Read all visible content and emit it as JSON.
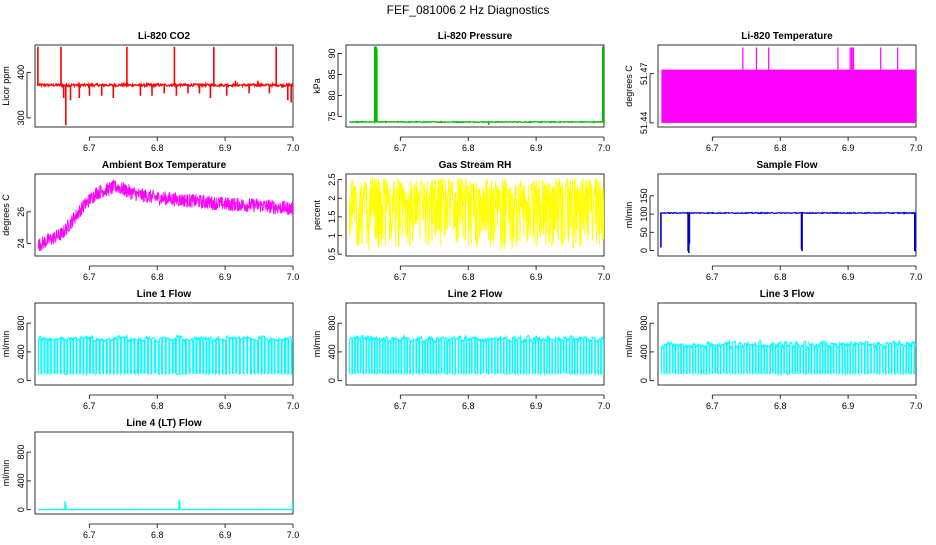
{
  "page": {
    "title": "FEF_081006  2 Hz Diagnostics"
  },
  "chart_data": [
    {
      "type": "line",
      "title": "Li-820 CO2",
      "xlabel": "",
      "ylabel": "Licor ppm",
      "xlim": [
        6.62,
        7.0
      ],
      "ylim": [
        280,
        460
      ],
      "x_ticks": [
        "6.7",
        "6.8",
        "6.9",
        "7.0"
      ],
      "y_ticks": [
        {
          "v": 300,
          "label": "300"
        },
        {
          "v": 400,
          "label": "400"
        }
      ],
      "series": [
        {
          "color": "#ff0000",
          "style": "step",
          "baseline": 372,
          "noise": 3,
          "spikes": [
            [
              6.624,
              455
            ],
            [
              6.658,
              455
            ],
            [
              6.662,
              345
            ],
            [
              6.665,
              285
            ],
            [
              6.672,
              340
            ],
            [
              6.685,
              345
            ],
            [
              6.7,
              350
            ],
            [
              6.718,
              350
            ],
            [
              6.735,
              345
            ],
            [
              6.755,
              455
            ],
            [
              6.775,
              350
            ],
            [
              6.792,
              350
            ],
            [
              6.81,
              355
            ],
            [
              6.825,
              455
            ],
            [
              6.828,
              350
            ],
            [
              6.845,
              355
            ],
            [
              6.862,
              355
            ],
            [
              6.878,
              345
            ],
            [
              6.883,
              455
            ],
            [
              6.902,
              350
            ],
            [
              6.915,
              380
            ],
            [
              6.935,
              355
            ],
            [
              6.948,
              380
            ],
            [
              6.965,
              355
            ],
            [
              6.975,
              455
            ],
            [
              6.992,
              340
            ],
            [
              6.997,
              335
            ]
          ]
        }
      ]
    },
    {
      "type": "line",
      "title": "Li-820 Pressure",
      "xlabel": "",
      "ylabel": "kPa",
      "xlim": [
        6.62,
        7.0
      ],
      "ylim": [
        72.5,
        92
      ],
      "x_ticks": [
        "6.7",
        "6.8",
        "6.9",
        "7.0"
      ],
      "y_ticks": [
        {
          "v": 75,
          "label": "75"
        },
        {
          "v": 80,
          "label": "80"
        },
        {
          "v": 85,
          "label": "85"
        },
        {
          "v": 90,
          "label": "90"
        }
      ],
      "series": [
        {
          "color": "#00bb00",
          "style": "step",
          "baseline": 73.7,
          "noise": 0.12,
          "spikes": [
            [
              6.662,
              91.5
            ],
            [
              6.664,
              91.5
            ],
            [
              6.665,
              91
            ],
            [
              6.83,
              73.2
            ],
            [
              6.998,
              91.5
            ],
            [
              7.0,
              91.5
            ]
          ]
        }
      ]
    },
    {
      "type": "line",
      "title": "Li-820 Temperature",
      "xlabel": "",
      "ylabel": "degrees C",
      "xlim": [
        6.62,
        7.0
      ],
      "ylim": [
        51.4375,
        51.4875
      ],
      "x_ticks": [
        "6.7",
        "6.8",
        "6.9",
        "7.0"
      ],
      "y_ticks": [
        {
          "v": 51.44,
          "label": "51.44"
        },
        {
          "v": 51.47,
          "label": "51.47"
        }
      ],
      "series": [
        {
          "color": "#ff00ff",
          "style": "band",
          "band": [
            51.44,
            51.4725
          ],
          "spikes": [
            [
              6.745,
              51.486
            ],
            [
              6.765,
              51.486
            ],
            [
              6.783,
              51.486
            ],
            [
              6.885,
              51.486
            ],
            [
              6.903,
              51.486
            ],
            [
              6.905,
              51.486
            ],
            [
              6.907,
              51.486
            ],
            [
              6.908,
              51.486
            ],
            [
              6.948,
              51.486
            ],
            [
              6.973,
              51.486
            ]
          ]
        }
      ]
    },
    {
      "type": "line",
      "title": "Ambient Box Temperature",
      "xlabel": "",
      "ylabel": "degrees C",
      "xlim": [
        6.62,
        7.0
      ],
      "ylim": [
        23.2,
        28.4
      ],
      "x_ticks": [
        "6.7",
        "6.8",
        "6.9",
        "7.0"
      ],
      "y_ticks": [
        {
          "v": 24,
          "label": "24"
        },
        {
          "v": 26,
          "label": "26"
        }
      ],
      "series": [
        {
          "color": "#ff00ff",
          "style": "trend",
          "noise": 0.45,
          "trend": [
            [
              6.625,
              23.9
            ],
            [
              6.66,
              24.6
            ],
            [
              6.69,
              26.3
            ],
            [
              6.71,
              27.2
            ],
            [
              6.74,
              27.6
            ],
            [
              6.77,
              27.1
            ],
            [
              6.8,
              26.9
            ],
            [
              6.85,
              26.7
            ],
            [
              6.9,
              26.5
            ],
            [
              6.95,
              26.4
            ],
            [
              7.0,
              26.2
            ]
          ]
        }
      ]
    },
    {
      "type": "line",
      "title": "Gas Stream RH",
      "xlabel": "",
      "ylabel": "percent",
      "xlim": [
        6.62,
        7.0
      ],
      "ylim": [
        0.45,
        2.65
      ],
      "x_ticks": [
        "6.7",
        "6.8",
        "6.9",
        "7.0"
      ],
      "y_ticks": [
        {
          "v": 0.5,
          "label": "0.5"
        },
        {
          "v": 1.0,
          "label": "1"
        },
        {
          "v": 1.5,
          "label": "1.5"
        },
        {
          "v": 2.0,
          "label": "2"
        },
        {
          "v": 2.5,
          "label": "2.5"
        }
      ],
      "series": [
        {
          "color": "#ffff00",
          "style": "noise",
          "baseline": 2.3,
          "noise": 0.25,
          "dip_low": 0.6,
          "dip_high": 2.0,
          "dip_rate": 0.55
        }
      ]
    },
    {
      "type": "line",
      "title": "Sample Flow",
      "xlabel": "",
      "ylabel": "ml/min",
      "xlim": [
        6.62,
        7.0
      ],
      "ylim": [
        -15,
        210
      ],
      "x_ticks": [
        "6.7",
        "6.8",
        "6.9",
        "7.0"
      ],
      "y_ticks": [
        {
          "v": 0,
          "label": "0"
        },
        {
          "v": 50,
          "label": "50"
        },
        {
          "v": 100,
          "label": "100"
        },
        {
          "v": 150,
          "label": "150"
        }
      ],
      "series": [
        {
          "color": "#0000cc",
          "style": "step",
          "baseline": 103,
          "noise": 1.2,
          "spikes": [
            [
              6.624,
              10
            ],
            [
              6.664,
              0
            ],
            [
              6.665,
              -5
            ],
            [
              6.666,
              20
            ],
            [
              6.831,
              5
            ],
            [
              6.832,
              0
            ],
            [
              6.998,
              0
            ],
            [
              7.0,
              -4
            ]
          ]
        }
      ]
    },
    {
      "type": "line",
      "title": "Line 1 Flow",
      "xlabel": "",
      "ylabel": "ml/min",
      "xlim": [
        6.62,
        7.0
      ],
      "ylim": [
        -60,
        1080
      ],
      "x_ticks": [
        "6.7",
        "6.8",
        "6.9",
        "7.0"
      ],
      "y_ticks": [
        {
          "v": 0,
          "label": "0"
        },
        {
          "v": 400,
          "label": "400"
        },
        {
          "v": 800,
          "label": "800"
        }
      ],
      "series": [
        {
          "color": "#00ffff",
          "style": "square",
          "high": 580,
          "low": 90,
          "period": 0.005,
          "duty": 0.75,
          "low_gaps": [
            [
              6.664,
              6.668
            ],
            [
              6.828,
              6.835
            ],
            [
              6.996,
              6.998
            ]
          ]
        }
      ]
    },
    {
      "type": "line",
      "title": "Line 2 Flow",
      "xlabel": "",
      "ylabel": "ml/min",
      "xlim": [
        6.62,
        7.0
      ],
      "ylim": [
        -60,
        1080
      ],
      "x_ticks": [
        "6.7",
        "6.8",
        "6.9",
        "7.0"
      ],
      "y_ticks": [
        {
          "v": 0,
          "label": "0"
        },
        {
          "v": 400,
          "label": "400"
        },
        {
          "v": 800,
          "label": "800"
        }
      ],
      "series": [
        {
          "color": "#00ffff",
          "style": "square",
          "high": 580,
          "low": 90,
          "period": 0.0042,
          "duty": 0.8,
          "low_gaps": []
        }
      ]
    },
    {
      "type": "line",
      "title": "Line 3 Flow",
      "xlabel": "",
      "ylabel": "ml/min",
      "xlim": [
        6.62,
        7.0
      ],
      "ylim": [
        -60,
        1080
      ],
      "x_ticks": [
        "6.7",
        "6.8",
        "6.9",
        "7.0"
      ],
      "y_ticks": [
        {
          "v": 0,
          "label": "0"
        },
        {
          "v": 400,
          "label": "400"
        },
        {
          "v": 800,
          "label": "800"
        }
      ],
      "series": [
        {
          "color": "#00ffff",
          "style": "square",
          "high": 500,
          "low": 90,
          "period": 0.0042,
          "duty": 0.8,
          "low_gaps": []
        }
      ]
    },
    {
      "type": "line",
      "title": "Line 4 (LT) Flow",
      "xlabel": "",
      "ylabel": "ml/min",
      "xlim": [
        6.62,
        7.0
      ],
      "ylim": [
        -60,
        1080
      ],
      "x_ticks": [
        "6.7",
        "6.8",
        "6.9",
        "7.0"
      ],
      "y_ticks": [
        {
          "v": 0,
          "label": "0"
        },
        {
          "v": 400,
          "label": "400"
        },
        {
          "v": 800,
          "label": "800"
        }
      ],
      "series": [
        {
          "color": "#00ffff",
          "style": "step",
          "baseline": 2,
          "noise": 1,
          "spikes": [
            [
              6.664,
              110
            ],
            [
              6.665,
              60
            ],
            [
              6.832,
              130
            ],
            [
              6.833,
              80
            ],
            [
              6.999,
              100
            ]
          ]
        }
      ]
    }
  ]
}
